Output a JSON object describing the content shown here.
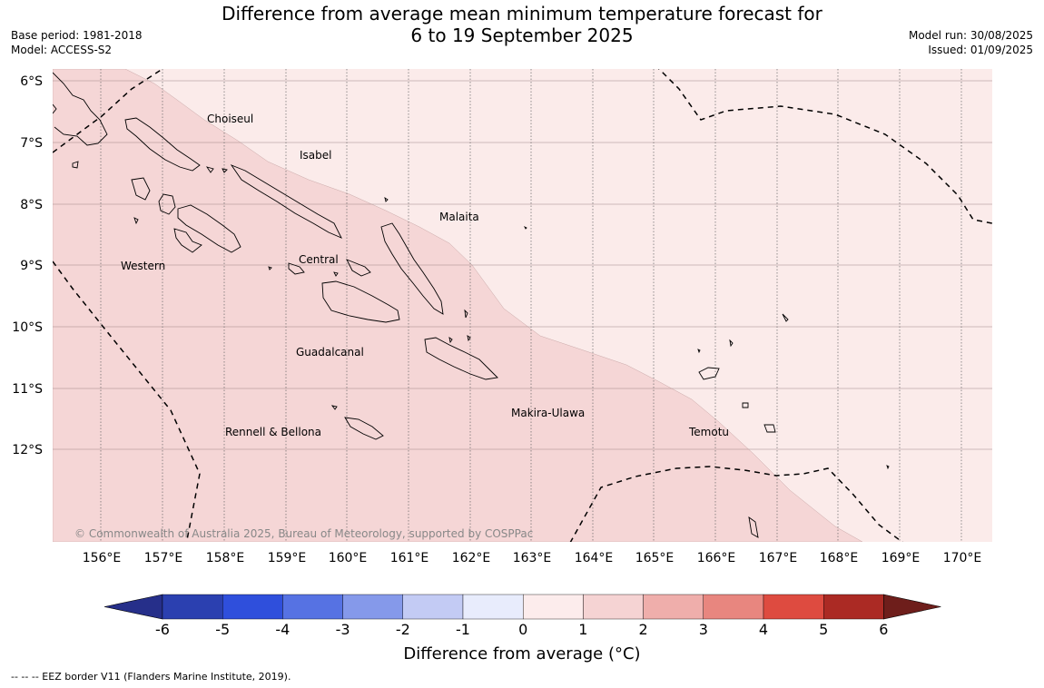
{
  "header": {
    "title_line1": "Difference from average mean minimum temperature forecast for",
    "title_line2": "6 to 19 September 2025",
    "base_period": "Base period: 1981-2018",
    "model": "Model: ACCESS-S2",
    "model_run": "Model run: 30/08/2025",
    "issued": "Issued: 01/09/2025"
  },
  "map": {
    "lat_labels": [
      "6°S",
      "7°S",
      "8°S",
      "9°S",
      "10°S",
      "11°S",
      "12°S"
    ],
    "lon_labels": [
      "156°E",
      "157°E",
      "158°E",
      "159°E",
      "160°E",
      "161°E",
      "162°E",
      "163°E",
      "164°E",
      "165°E",
      "166°E",
      "167°E",
      "168°E",
      "169°E",
      "170°E"
    ],
    "regions": [
      "Choiseul",
      "Isabel",
      "Malaita",
      "Western",
      "Central",
      "Guadalcanal",
      "Makira-Ulawa",
      "Rennell & Bellona",
      "Temotu"
    ],
    "copyright": "© Commonwealth of Australia 2025, Bureau of Meteorology, supported by COSPPac",
    "colors": {
      "anomaly_1_2": "#f5d6d6",
      "anomaly_0_1": "#fbebea"
    }
  },
  "colorbar": {
    "ticks": [
      "-6",
      "-5",
      "-4",
      "-3",
      "-2",
      "-1",
      "0",
      "1",
      "2",
      "3",
      "4",
      "5",
      "6"
    ],
    "colors": [
      "#262f8a",
      "#2b40b0",
      "#2f4fdc",
      "#5672e3",
      "#8599ea",
      "#c3cbf4",
      "#e8ecfc",
      "#fcecec",
      "#f5d3d3",
      "#efaeab",
      "#e8867f",
      "#de4b40",
      "#ab2a24",
      "#6e1e1b"
    ],
    "label": "Difference from average (°C)"
  },
  "footer": {
    "eez_note": "--  --  -- EEZ border V11 (Flanders Marine Institute, 2019)."
  }
}
